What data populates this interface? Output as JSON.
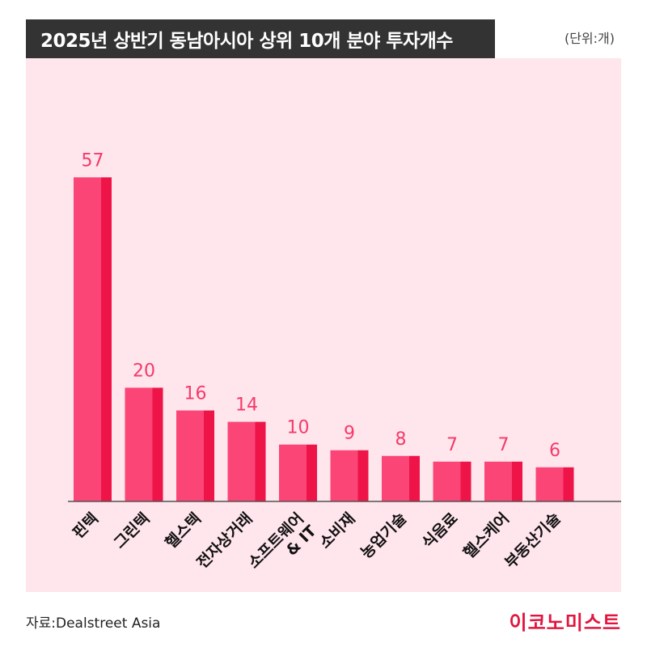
{
  "header": {
    "title": "2025년 상반기 동남아시아 상위 10개 분야 투자개수",
    "unit": "(단위:개)"
  },
  "footer": {
    "source": "자료:Dealstreet Asia",
    "brand": "이코노미스트"
  },
  "colors": {
    "bar_front": "#fb4577",
    "bar_side": "#ee1448",
    "panel_bg": "#ffe5ec",
    "label_pink": "#f53a6a",
    "axis": "#555555"
  },
  "chart_data": {
    "type": "bar",
    "title": "2025년 상반기 동남아시아 상위 10개 분야 투자개수",
    "unit": "(단위:개)",
    "categories": [
      "핀텍",
      "그린텍",
      "헬스텍",
      "전자상거래",
      "소프트웨어\n& IT",
      "소비재",
      "농업기술",
      "식음료",
      "헬스케어",
      "부동산기술"
    ],
    "values": [
      57,
      20,
      16,
      14,
      10,
      9,
      8,
      7,
      7,
      6
    ],
    "ylim": [
      0,
      60
    ],
    "grid": false
  }
}
